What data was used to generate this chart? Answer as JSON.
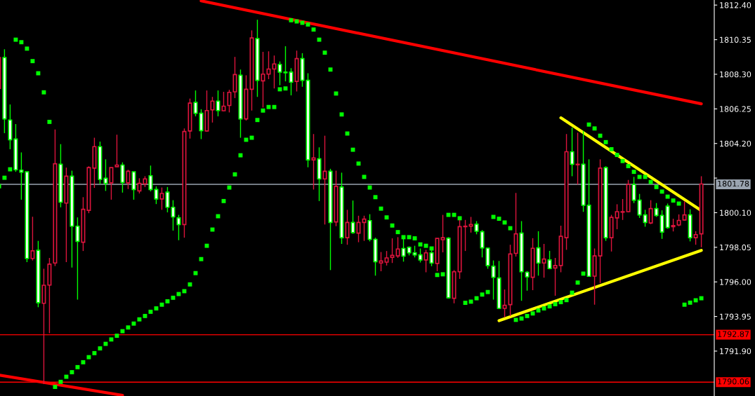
{
  "chart_data": {
    "type": "candlestick",
    "categories": [
      null,
      null,
      null,
      null,
      null,
      null,
      null,
      null,
      null,
      null,
      null,
      null,
      null,
      null,
      null,
      null,
      null,
      null,
      null,
      null,
      null,
      null,
      null,
      null,
      null,
      null,
      null,
      null,
      null,
      null,
      null,
      null,
      null,
      null,
      null,
      null,
      null,
      null,
      null,
      null,
      null,
      null,
      null,
      null,
      null,
      null,
      null,
      null,
      null,
      null,
      null,
      null,
      null,
      null,
      null,
      null,
      null,
      null,
      null,
      null,
      null,
      null,
      null,
      null,
      null,
      null,
      null,
      null,
      null,
      null,
      null,
      null,
      null,
      null,
      null,
      null,
      null,
      null,
      null,
      null,
      null,
      null,
      null,
      null,
      null,
      null,
      null,
      null,
      null,
      null,
      null,
      null,
      null,
      null,
      null,
      null,
      null,
      null,
      null,
      null,
      null,
      null,
      null,
      null,
      null,
      null,
      null,
      null,
      null,
      null,
      null,
      null,
      null,
      null,
      null,
      null,
      null,
      null,
      null,
      null,
      null,
      null,
      null,
      null,
      null,
      null
    ],
    "ohlc": [
      [
        1807.46,
        1809.29,
        1807.46,
        1809.29
      ],
      [
        1809.29,
        1809.78,
        1804.81,
        1805.66
      ],
      [
        1805.59,
        1806.51,
        1803.86,
        1804.42
      ],
      [
        1804.46,
        1805.35,
        1802.52,
        1802.64
      ],
      [
        1802.62,
        1803.67,
        1800.87,
        1802.5
      ],
      [
        1802.52,
        1802.52,
        1797.17,
        1797.39
      ],
      [
        1797.39,
        1799.86,
        1797.27,
        1797.84
      ],
      [
        1797.87,
        1798.43,
        1794.5,
        1794.77
      ],
      [
        1794.73,
        1796.78,
        1789.95,
        1795.8
      ],
      [
        1795.81,
        1797.42,
        1792.96,
        1797.05
      ],
      [
        1797.12,
        1805.03,
        1796.94,
        1803.0
      ],
      [
        1802.97,
        1804.16,
        1800.42,
        1800.72
      ],
      [
        1800.67,
        1802.77,
        1797.17,
        1802.26
      ],
      [
        1802.26,
        1802.59,
        1796.85,
        1799.3
      ],
      [
        1799.3,
        1799.82,
        1794.95,
        1798.4
      ],
      [
        1798.35,
        1801.02,
        1797.83,
        1800.3
      ],
      [
        1800.24,
        1802.85,
        1800.07,
        1802.77
      ],
      [
        1802.74,
        1804.54,
        1801.57,
        1804.01
      ],
      [
        1804.01,
        1804.31,
        1801.8,
        1802.07
      ],
      [
        1802.14,
        1803.26,
        1801.39,
        1801.84
      ],
      [
        1801.87,
        1802.77,
        1800.87,
        1802.77
      ],
      [
        1802.82,
        1804.72,
        1802.82,
        1802.92
      ],
      [
        1802.92,
        1803.08,
        1801.29,
        1801.89
      ],
      [
        1801.87,
        1802.64,
        1801.5,
        1802.55
      ],
      [
        1802.52,
        1802.52,
        1800.87,
        1801.47
      ],
      [
        1801.39,
        1802.14,
        1801.24,
        1801.84
      ],
      [
        1801.81,
        1802.26,
        1801.62,
        1802.1
      ],
      [
        1802.29,
        1802.89,
        1801.36,
        1801.47
      ],
      [
        1801.47,
        1801.66,
        1800.61,
        1800.91
      ],
      [
        1800.91,
        1801.59,
        1800.27,
        1801.24
      ],
      [
        1801.32,
        1801.62,
        1800.12,
        1800.42
      ],
      [
        1800.42,
        1800.84,
        1799.04,
        1799.85
      ],
      [
        1799.79,
        1799.97,
        1798.47,
        1799.4
      ],
      [
        1799.4,
        1805.09,
        1798.62,
        1804.91
      ],
      [
        1804.94,
        1806.86,
        1804.49,
        1806.59
      ],
      [
        1806.63,
        1807.34,
        1805.81,
        1805.99
      ],
      [
        1805.99,
        1806.23,
        1804.46,
        1804.96
      ],
      [
        1804.94,
        1807.34,
        1804.91,
        1806.15
      ],
      [
        1806.19,
        1806.96,
        1805.44,
        1806.71
      ],
      [
        1806.71,
        1807.34,
        1805.81,
        1806.15
      ],
      [
        1806.14,
        1807.26,
        1806.11,
        1806.41
      ],
      [
        1806.45,
        1807.38,
        1806.04,
        1807.23
      ],
      [
        1807.26,
        1809.33,
        1806.89,
        1808.28
      ],
      [
        1808.24,
        1808.58,
        1804.54,
        1805.66
      ],
      [
        1805.66,
        1808.24,
        1805.56,
        1807.41
      ],
      [
        1807.41,
        1810.9,
        1806.15,
        1810.45
      ],
      [
        1810.41,
        1811.53,
        1806.96,
        1807.94
      ],
      [
        1807.91,
        1809.63,
        1806.33,
        1808.31
      ],
      [
        1808.31,
        1809.66,
        1808.01,
        1808.61
      ],
      [
        1808.61,
        1809.41,
        1807.46,
        1808.91
      ],
      [
        1808.88,
        1809.06,
        1807.65,
        1808.43
      ],
      [
        1808.43,
        1809.96,
        1807.88,
        1808.39
      ],
      [
        1808.43,
        1808.66,
        1807.05,
        1807.83
      ],
      [
        1807.88,
        1809.7,
        1807.28,
        1809.23
      ],
      [
        1809.23,
        1809.55,
        1807.56,
        1807.94
      ],
      [
        1807.94,
        1808.36,
        1802.79,
        1803.23
      ],
      [
        1803.23,
        1804.76,
        1801.47,
        1803.34
      ],
      [
        1803.29,
        1803.97,
        1800.79,
        1802.1
      ],
      [
        1802.1,
        1804.66,
        1799.4,
        1802.55
      ],
      [
        1802.55,
        1802.7,
        1796.7,
        1799.52
      ],
      [
        1799.55,
        1802.59,
        1799.3,
        1801.66
      ],
      [
        1801.62,
        1802.47,
        1798.25,
        1798.62
      ],
      [
        1798.62,
        1800.27,
        1798.2,
        1799.52
      ],
      [
        1799.52,
        1800.82,
        1798.85,
        1798.92
      ],
      [
        1798.89,
        1799.92,
        1798.35,
        1799.52
      ],
      [
        1799.52,
        1799.92,
        1798.43,
        1799.72
      ],
      [
        1799.63,
        1800.01,
        1798.4,
        1798.52
      ],
      [
        1798.52,
        1798.62,
        1796.37,
        1797.2
      ],
      [
        1797.12,
        1797.77,
        1796.63,
        1797.24
      ],
      [
        1797.17,
        1797.83,
        1796.97,
        1797.42
      ],
      [
        1797.45,
        1798.58,
        1797.12,
        1797.57
      ],
      [
        1797.54,
        1798.65,
        1797.42,
        1797.95
      ],
      [
        1797.98,
        1798.7,
        1797.2,
        1797.53
      ],
      [
        1798.05,
        1798.1,
        1797.57,
        1797.72
      ],
      [
        1797.72,
        1798.14,
        1797.45,
        1797.6
      ],
      [
        1797.6,
        1797.98,
        1797.15,
        1797.3
      ],
      [
        1797.3,
        1797.9,
        1796.57,
        1797.72
      ],
      [
        1797.72,
        1797.87,
        1796.93,
        1797.12
      ],
      [
        1797.09,
        1798.58,
        1796.63,
        1798.58
      ],
      [
        1798.5,
        1799.97,
        1797.75,
        1798.62
      ],
      [
        1798.59,
        1798.65,
        1795.03,
        1795.06
      ],
      [
        1795.03,
        1796.7,
        1794.73,
        1796.6
      ],
      [
        1796.6,
        1799.67,
        1796.18,
        1799.27
      ],
      [
        1799.27,
        1799.67,
        1797.83,
        1799.3
      ],
      [
        1799.3,
        1799.85,
        1798.92,
        1799.4
      ],
      [
        1799.42,
        1799.6,
        1798.82,
        1799.0
      ],
      [
        1798.97,
        1799.07,
        1797.45,
        1798.02
      ],
      [
        1798.0,
        1798.02,
        1796.78,
        1796.97
      ],
      [
        1796.93,
        1797.27,
        1794.95,
        1796.27
      ],
      [
        1796.23,
        1797.24,
        1794.4,
        1794.43
      ],
      [
        1794.43,
        1795.55,
        1793.9,
        1794.61
      ],
      [
        1794.65,
        1798.2,
        1793.98,
        1797.65
      ],
      [
        1797.69,
        1801.27,
        1797.5,
        1798.85
      ],
      [
        1798.89,
        1799.6,
        1794.88,
        1796.6
      ],
      [
        1796.57,
        1796.64,
        1795.48,
        1796.3
      ],
      [
        1796.27,
        1798.59,
        1795.51,
        1797.99
      ],
      [
        1798.02,
        1799.0,
        1796.37,
        1797.12
      ],
      [
        1797.12,
        1798.25,
        1796.25,
        1797.35
      ],
      [
        1797.3,
        1797.84,
        1796.75,
        1796.79
      ],
      [
        1796.82,
        1797.42,
        1795.18,
        1796.97
      ],
      [
        1796.97,
        1799.33,
        1796.57,
        1798.7
      ],
      [
        1798.62,
        1804.76,
        1797.9,
        1803.71
      ],
      [
        1803.71,
        1805.14,
        1802.26,
        1802.97
      ],
      [
        1802.94,
        1804.84,
        1801.77,
        1802.97
      ],
      [
        1802.97,
        1804.94,
        1800.15,
        1800.54
      ],
      [
        1800.54,
        1803.26,
        1796.3,
        1796.33
      ],
      [
        1796.34,
        1797.98,
        1794.65,
        1797.54
      ],
      [
        1797.54,
        1803.26,
        1795.93,
        1802.74
      ],
      [
        1802.77,
        1802.85,
        1798.43,
        1798.62
      ],
      [
        1798.62,
        1799.97,
        1797.8,
        1799.82
      ],
      [
        1799.79,
        1800.6,
        1799.12,
        1800.16
      ],
      [
        1800.13,
        1800.91,
        1799.67,
        1800.16
      ],
      [
        1800.16,
        1802.04,
        1800.12,
        1801.77
      ],
      [
        1801.77,
        1802.22,
        1800.67,
        1800.84
      ],
      [
        1800.84,
        1801.21,
        1799.79,
        1799.97
      ],
      [
        1799.97,
        1800.27,
        1799.27,
        1799.52
      ],
      [
        1799.49,
        1800.84,
        1799.42,
        1800.34
      ],
      [
        1800.34,
        1800.67,
        1799.85,
        1799.94
      ],
      [
        1799.94,
        1800.24,
        1798.55,
        1798.95
      ],
      [
        1800.49,
        1800.64,
        1799.15,
        1799.22
      ],
      [
        1799.27,
        1799.74,
        1798.99,
        1799.34
      ],
      [
        1799.37,
        1800.0,
        1799.3,
        1799.64
      ],
      [
        1799.67,
        1800.76,
        1799.64,
        1799.97
      ],
      [
        1799.97,
        1800.3,
        1798.4,
        1798.62
      ],
      [
        1798.62,
        1799.0,
        1798.2,
        1798.8
      ],
      [
        1798.85,
        1802.26,
        1798.05,
        1801.8
      ]
    ],
    "colors": [
      "#dc143c",
      "#00ff00",
      "#00ff00",
      "#00ff00",
      "#00ff00",
      "#00ff00",
      "#dc143c",
      "#00ff00",
      "#dc143c",
      "#dc143c",
      "#dc143c",
      "#00ff00",
      "#dc143c",
      "#00ff00",
      "#00ff00",
      "#dc143c",
      "#dc143c",
      "#dc143c",
      "#00ff00",
      "#00ff00",
      "#dc143c",
      "#dc143c",
      "#00ff00",
      "#dc143c",
      "#00ff00",
      "#dc143c",
      "#dc143c",
      "#00ff00",
      "#00ff00",
      "#dc143c",
      "#00ff00",
      "#00ff00",
      "#00ff00",
      "#dc143c",
      "#dc143c",
      "#00ff00",
      "#00ff00",
      "#dc143c",
      "#dc143c",
      "#00ff00",
      "#dc143c",
      "#dc143c",
      "#dc143c",
      "#00ff00",
      "#dc143c",
      "#dc143c",
      "#00ff00",
      "#dc143c",
      "#dc143c",
      "#dc143c",
      "#00ff00",
      "#00ff00",
      "#00ff00",
      "#dc143c",
      "#00ff00",
      "#00ff00",
      "#dc143c",
      "#00ff00",
      "#dc143c",
      "#00ff00",
      "#dc143c",
      "#00ff00",
      "#dc143c",
      "#00ff00",
      "#dc143c",
      "#dc143c",
      "#00ff00",
      "#00ff00",
      "#dc143c",
      "#dc143c",
      "#dc143c",
      "#dc143c",
      "#00ff00",
      "#00ff00",
      "#00ff00",
      "#00ff00",
      "#dc143c",
      "#00ff00",
      "#dc143c",
      "#dc143c",
      "#00ff00",
      "#dc143c",
      "#dc143c",
      "#dc143c",
      "#dc143c",
      "#00ff00",
      "#00ff00",
      "#00ff00",
      "#00ff00",
      "#00ff00",
      "#dc143c",
      "#dc143c",
      "#dc143c",
      "#00ff00",
      "#00ff00",
      "#dc143c",
      "#00ff00",
      "#dc143c",
      "#00ff00",
      "#dc143c",
      "#dc143c",
      "#dc143c",
      "#00ff00",
      "#dc143c",
      "#00ff00",
      "#00ff00",
      "#dc143c",
      "#dc143c",
      "#00ff00",
      "#dc143c",
      "#dc143c",
      "#dc143c",
      "#dc143c",
      "#00ff00",
      "#00ff00",
      "#00ff00",
      "#dc143c",
      "#00ff00",
      "#00ff00",
      "#00ff00",
      "#dc143c",
      "#dc143c",
      "#dc143c",
      "#00ff00",
      "#dc143c",
      "#dc143c"
    ],
    "series": [
      {
        "type": "scatter",
        "color": "#00ff00",
        "marker": "square",
        "values": [
          1801.65,
          1802.17,
          1802.67,
          1810.35,
          1810.2,
          1809.82,
          1809.08,
          1808.36,
          1807.23,
          1805.48,
          1789.78,
          1790.08,
          1790.38,
          1790.65,
          1790.95,
          1791.24,
          1791.54,
          1791.78,
          1792.06,
          1792.33,
          1792.59,
          1792.81,
          1793.08,
          1793.3,
          1793.53,
          1793.78,
          1793.98,
          1794.23,
          1794.43,
          1794.65,
          1794.85,
          1795.06,
          1795.28,
          1795.45,
          1795.85,
          1796.52,
          1797.35,
          1798.14,
          1799.1,
          1799.89,
          1800.79,
          1801.59,
          1802.37,
          1803.5,
          1804.42,
          1804.54,
          1805.59,
          1806.15,
          1806.36,
          1806.36,
          1807.41,
          1807.46,
          1811.5,
          1811.43,
          1811.35,
          1811.25,
          1810.95,
          1810.35,
          1809.58,
          1808.58,
          1807.16,
          1805.92,
          1804.79,
          1803.83,
          1803.01,
          1802.22,
          1801.59,
          1801.02,
          1800.34,
          1799.82,
          1799.34,
          1798.95,
          1798.65,
          1798.65,
          1798.58,
          1798.22,
          1798.14,
          1797.98,
          1796.41,
          1796.45,
          1799.97,
          1799.97,
          1799.77,
          1794.76,
          1794.83,
          1795.03,
          1795.25,
          1795.4,
          1799.85,
          1799.74,
          1799.52,
          1799.18,
          1793.75,
          1793.83,
          1793.98,
          1794.13,
          1794.31,
          1794.43,
          1794.55,
          1794.68,
          1794.8,
          1794.92,
          1795.36,
          1795.96,
          1796.49,
          1805.32,
          1805.09,
          1804.66,
          1804.28,
          1803.86,
          1803.52,
          1803.16,
          1802.86,
          1802.52,
          1802.22,
          1802.22,
          1801.92,
          1801.62,
          1801.35,
          1801.05,
          1800.82,
          1800.64,
          1794.65,
          1794.77,
          1794.91,
          1795.03
        ]
      },
      {
        "type": "line",
        "color": "#ff0000",
        "values": [
          null,
          null,
          null,
          null,
          null,
          null,
          null,
          null,
          null,
          null,
          null,
          null,
          null,
          null,
          null,
          null,
          null,
          null,
          null,
          null,
          null,
          null,
          null,
          null,
          null,
          null,
          null,
          null,
          null,
          null,
          null,
          null,
          null,
          null,
          null,
          null,
          1812.65,
          null,
          null,
          null,
          null,
          null,
          null,
          null,
          null,
          null,
          null,
          null,
          null,
          null,
          null,
          null,
          null,
          null,
          null,
          null,
          null,
          null,
          null,
          null,
          null,
          null,
          null,
          null,
          null,
          null,
          null,
          null,
          null,
          null,
          null,
          null,
          null,
          null,
          null,
          null,
          null,
          null,
          null,
          null,
          null,
          null,
          null,
          null,
          null,
          null,
          null,
          null,
          null,
          null,
          null,
          null,
          null,
          null,
          null,
          null,
          null,
          null,
          null,
          null,
          null,
          null,
          null,
          null,
          null,
          null,
          null,
          null,
          null,
          null,
          null,
          null,
          null,
          null,
          null,
          null,
          null,
          null,
          null,
          null,
          null,
          null,
          null,
          null,
          null,
          1806.55
        ]
      },
      {
        "type": "line",
        "color": "#ff0000",
        "values": [
          1790.48,
          null,
          null,
          null,
          null,
          null,
          null,
          null,
          null,
          null,
          null,
          null,
          null,
          null,
          null,
          null,
          null,
          null,
          null,
          null,
          null,
          null,
          1789.28,
          null,
          null,
          null,
          null,
          null,
          null,
          null,
          null,
          null,
          null,
          null,
          null,
          null,
          null,
          null,
          null,
          null,
          null,
          null,
          null,
          null,
          null,
          null,
          null,
          null,
          null,
          null,
          null,
          null,
          null,
          null,
          null,
          null,
          null,
          null,
          null,
          null,
          null,
          null,
          null,
          null,
          null,
          null,
          null,
          null,
          null,
          null,
          null,
          null,
          null,
          null,
          null,
          null,
          null,
          null,
          null,
          null,
          null,
          null,
          null,
          null,
          null,
          null,
          null,
          null,
          null,
          null,
          null,
          null,
          null,
          null,
          null,
          null,
          null,
          null,
          null,
          null,
          null,
          null,
          null,
          null,
          null,
          null,
          null,
          null,
          null,
          null,
          null,
          null,
          null,
          null,
          null,
          null,
          null,
          null,
          null,
          null,
          null,
          null,
          null,
          null,
          null,
          null
        ]
      },
      {
        "type": "line",
        "color": "#ffff00",
        "values": [
          null,
          null,
          null,
          null,
          null,
          null,
          null,
          null,
          null,
          null,
          null,
          null,
          null,
          null,
          null,
          null,
          null,
          null,
          null,
          null,
          null,
          null,
          null,
          null,
          null,
          null,
          null,
          null,
          null,
          null,
          null,
          null,
          null,
          null,
          null,
          null,
          null,
          null,
          null,
          null,
          null,
          null,
          null,
          null,
          null,
          null,
          null,
          null,
          null,
          null,
          null,
          null,
          null,
          null,
          null,
          null,
          null,
          null,
          null,
          null,
          null,
          null,
          null,
          null,
          null,
          null,
          null,
          null,
          null,
          null,
          null,
          null,
          null,
          null,
          null,
          null,
          null,
          null,
          null,
          null,
          null,
          null,
          null,
          null,
          null,
          null,
          null,
          null,
          null,
          null,
          null,
          null,
          null,
          null,
          null,
          null,
          null,
          null,
          null,
          null,
          1805.72,
          null,
          null,
          null,
          null,
          null,
          null,
          null,
          null,
          null,
          null,
          null,
          null,
          null,
          null,
          null,
          null,
          null,
          null,
          null,
          null,
          null,
          null,
          null,
          null,
          1800.22
        ]
      },
      {
        "type": "line",
        "color": "#ffff00",
        "values": [
          null,
          null,
          null,
          null,
          null,
          null,
          null,
          null,
          null,
          null,
          null,
          null,
          null,
          null,
          null,
          null,
          null,
          null,
          null,
          null,
          null,
          null,
          null,
          null,
          null,
          null,
          null,
          null,
          null,
          null,
          null,
          null,
          null,
          null,
          null,
          null,
          null,
          null,
          null,
          null,
          null,
          null,
          null,
          null,
          null,
          null,
          null,
          null,
          null,
          null,
          null,
          null,
          null,
          null,
          null,
          null,
          null,
          null,
          null,
          null,
          null,
          null,
          null,
          null,
          null,
          null,
          null,
          null,
          null,
          null,
          null,
          null,
          null,
          null,
          null,
          null,
          null,
          null,
          null,
          null,
          null,
          null,
          null,
          null,
          null,
          null,
          null,
          null,
          null,
          1793.7,
          null,
          null,
          null,
          null,
          null,
          null,
          null,
          null,
          null,
          null,
          null,
          null,
          null,
          null,
          null,
          null,
          null,
          null,
          null,
          null,
          null,
          null,
          null,
          null,
          null,
          null,
          null,
          null,
          null,
          null,
          null,
          null,
          null,
          null,
          null,
          1797.87
        ]
      }
    ],
    "ylim": [
      1789.24,
      1812.7
    ],
    "yticks": [
      {
        "value": 1812.4,
        "label": "1812.40"
      },
      {
        "value": 1810.35,
        "label": "1810.35"
      },
      {
        "value": 1808.3,
        "label": "1808.30"
      },
      {
        "value": 1806.25,
        "label": "1806.25"
      },
      {
        "value": 1804.2,
        "label": "1804.20"
      },
      {
        "value": 1802.15,
        "label": null
      },
      {
        "value": 1800.1,
        "label": "1800.10"
      },
      {
        "value": 1798.05,
        "label": "1798.05"
      },
      {
        "value": 1796.0,
        "label": "1796.00"
      },
      {
        "value": 1793.95,
        "label": "1793.95"
      },
      {
        "value": 1791.9,
        "label": "1791.90"
      }
    ],
    "ref_lines": [
      {
        "axis": "y",
        "value": 1801.78,
        "label": "1801.78",
        "color": "#9aa4b0"
      },
      {
        "axis": "y",
        "value": 1792.87,
        "label": "1792.87",
        "color": "#ff0000"
      },
      {
        "axis": "y",
        "value": 1790.06,
        "label": "1790.06",
        "color": "#ff0000"
      }
    ],
    "tick_labels": "y"
  }
}
